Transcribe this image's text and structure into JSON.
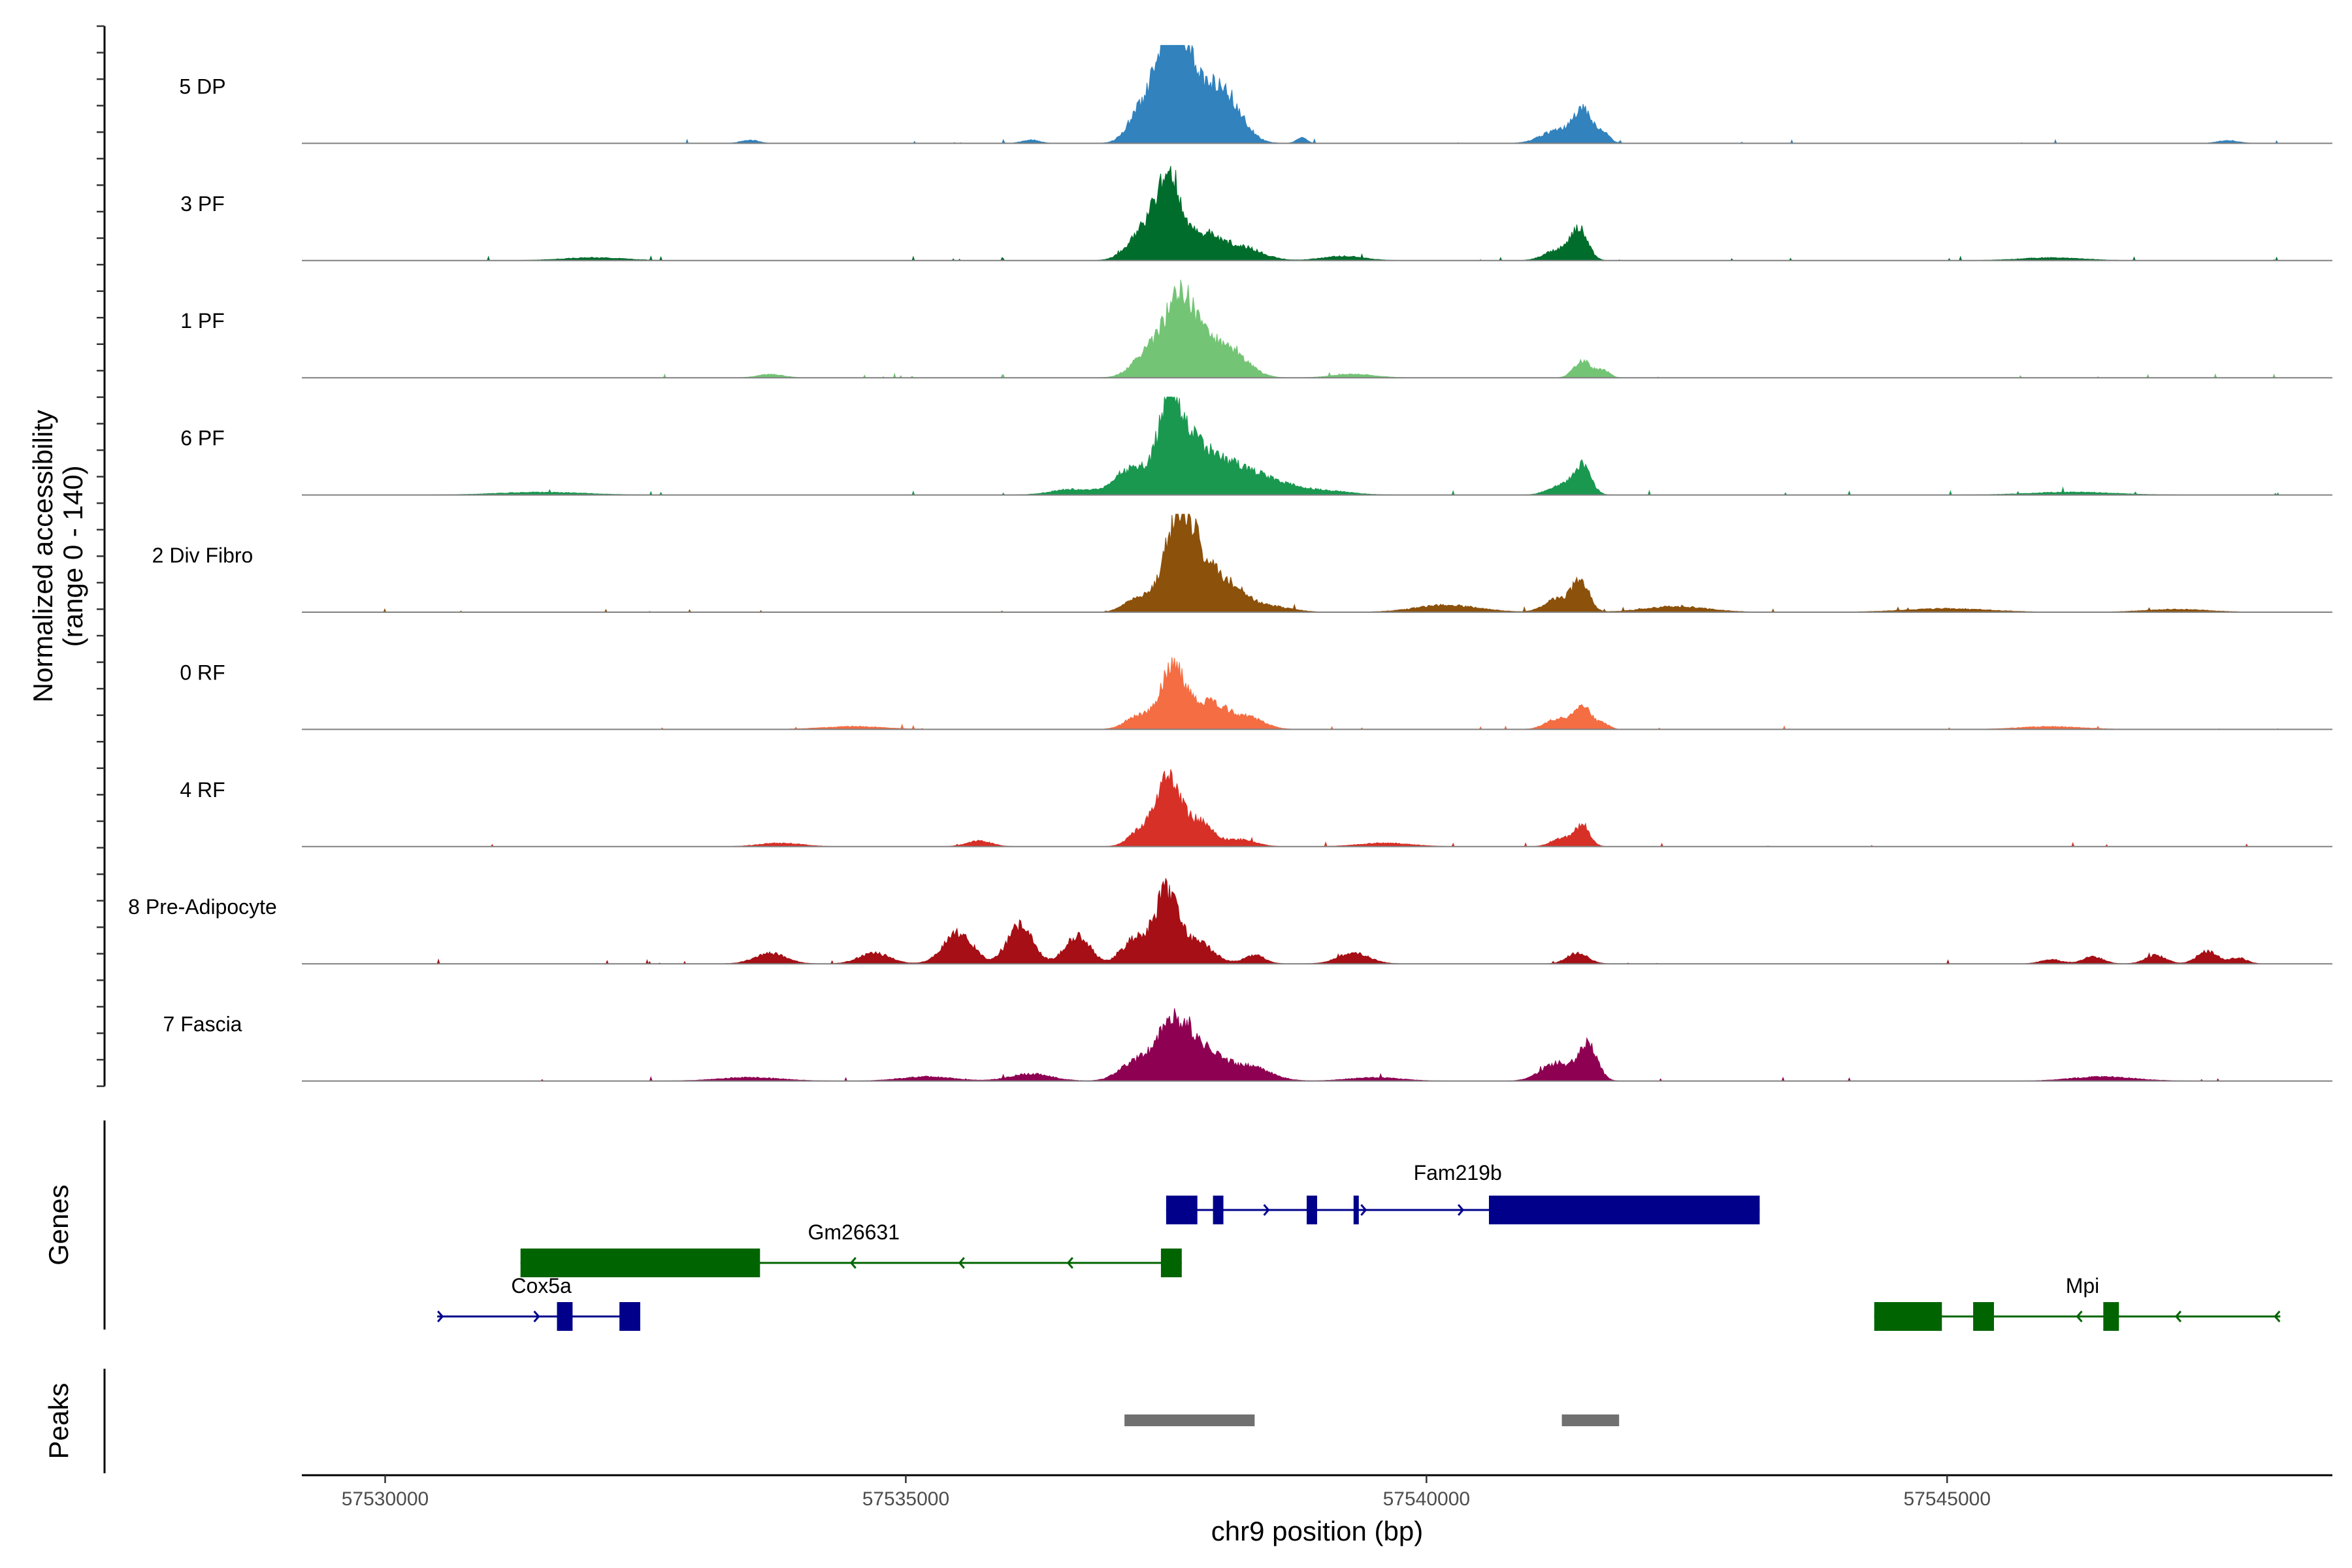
{
  "chart_data": {
    "type": "area",
    "title": "",
    "ylabel": "Normalized accessibility\n(range 0 - 140)",
    "ylim": [
      0,
      140
    ],
    "xlabel": "chr9 position (bp)",
    "xlim": [
      57529200,
      57548700
    ],
    "xticks": [
      57530000,
      57535000,
      57540000,
      57545000
    ],
    "xtick_labels": [
      "57530000",
      "57535000",
      "57540000",
      "57545000"
    ],
    "series": [
      {
        "name": "5 DP",
        "color": "#3182bd",
        "peaks": [
          [
            57537550,
            140,
            140
          ],
          [
            57537800,
            75,
            230
          ],
          [
            57538100,
            40,
            150
          ],
          [
            57537250,
            40,
            120
          ],
          [
            57541500,
            45,
            90
          ],
          [
            57541250,
            18,
            150
          ],
          [
            57541700,
            15,
            60
          ],
          [
            57538800,
            8,
            50
          ],
          [
            57533500,
            5,
            80
          ],
          [
            57536200,
            5,
            80
          ],
          [
            57547700,
            4,
            100
          ]
        ]
      },
      {
        "name": "3 PF",
        "color": "#006d2c",
        "peaks": [
          [
            57537530,
            115,
            110
          ],
          [
            57537300,
            45,
            150
          ],
          [
            57537850,
            35,
            150
          ],
          [
            57538200,
            20,
            200
          ],
          [
            57541470,
            45,
            80
          ],
          [
            57541250,
            15,
            120
          ],
          [
            57539200,
            6,
            200
          ],
          [
            57532000,
            4,
            300
          ],
          [
            57546000,
            4,
            300
          ]
        ]
      },
      {
        "name": "1 PF",
        "color": "#74c476",
        "peaks": [
          [
            57537630,
            100,
            130
          ],
          [
            57537350,
            40,
            150
          ],
          [
            57537900,
            50,
            180
          ],
          [
            57538200,
            20,
            150
          ],
          [
            57541500,
            25,
            80
          ],
          [
            57541700,
            10,
            60
          ],
          [
            57533700,
            5,
            120
          ],
          [
            57539300,
            5,
            200
          ]
        ]
      },
      {
        "name": "6 PF",
        "color": "#1a9850",
        "peaks": [
          [
            57537530,
            120,
            100
          ],
          [
            57537720,
            60,
            150
          ],
          [
            57537200,
            40,
            170
          ],
          [
            57538000,
            40,
            200
          ],
          [
            57538400,
            25,
            250
          ],
          [
            57541500,
            40,
            80
          ],
          [
            57541300,
            15,
            120
          ],
          [
            57536600,
            8,
            200
          ],
          [
            57539000,
            6,
            250
          ],
          [
            57531500,
            4,
            400
          ],
          [
            57546200,
            4,
            400
          ]
        ]
      },
      {
        "name": "2 Div Fibro",
        "color": "#8c510a",
        "peaks": [
          [
            57537620,
            125,
            140
          ],
          [
            57537850,
            55,
            180
          ],
          [
            57537220,
            20,
            120
          ],
          [
            57538150,
            25,
            150
          ],
          [
            57538500,
            8,
            200
          ],
          [
            57541480,
            45,
            80
          ],
          [
            57541250,
            18,
            120
          ],
          [
            57540200,
            10,
            300
          ],
          [
            57542400,
            8,
            300
          ],
          [
            57545000,
            5,
            400
          ],
          [
            57547200,
            4,
            300
          ]
        ]
      },
      {
        "name": "0 RF",
        "color": "#f46d43",
        "peaks": [
          [
            57537560,
            85,
            110
          ],
          [
            57537900,
            40,
            180
          ],
          [
            57537250,
            20,
            130
          ],
          [
            57538300,
            15,
            150
          ],
          [
            57541500,
            35,
            80
          ],
          [
            57541250,
            15,
            110
          ],
          [
            57541700,
            8,
            60
          ],
          [
            57534500,
            4,
            300
          ],
          [
            57546000,
            4,
            300
          ]
        ]
      },
      {
        "name": "4 RF",
        "color": "#d73027",
        "peaks": [
          [
            57537530,
            95,
            110
          ],
          [
            57537820,
            35,
            120
          ],
          [
            57537280,
            25,
            120
          ],
          [
            57538200,
            10,
            150
          ],
          [
            57541500,
            30,
            70
          ],
          [
            57541300,
            12,
            100
          ],
          [
            57535700,
            8,
            120
          ],
          [
            57533800,
            5,
            200
          ],
          [
            57539600,
            5,
            250
          ]
        ]
      },
      {
        "name": "8 Pre-Adipocyte",
        "color": "#a50f15",
        "peaks": [
          [
            57537500,
            100,
            110
          ],
          [
            57537800,
            30,
            150
          ],
          [
            57537200,
            35,
            120
          ],
          [
            57535500,
            45,
            140
          ],
          [
            57536100,
            55,
            120
          ],
          [
            57536650,
            40,
            120
          ],
          [
            57534700,
            15,
            150
          ],
          [
            57533700,
            15,
            150
          ],
          [
            57538350,
            12,
            100
          ],
          [
            57539300,
            15,
            150
          ],
          [
            57541450,
            15,
            100
          ],
          [
            57546400,
            10,
            100
          ],
          [
            57547000,
            12,
            100
          ],
          [
            57547500,
            18,
            100
          ],
          [
            57546000,
            6,
            100
          ],
          [
            57547800,
            8,
            80
          ]
        ]
      },
      {
        "name": "7 Fascia",
        "color": "#8e0152",
        "peaks": [
          [
            57537550,
            75,
            150
          ],
          [
            57537850,
            45,
            180
          ],
          [
            57537200,
            25,
            150
          ],
          [
            57538300,
            20,
            200
          ],
          [
            57541550,
            50,
            90
          ],
          [
            57541250,
            25,
            150
          ],
          [
            57536200,
            10,
            200
          ],
          [
            57535200,
            6,
            250
          ],
          [
            57546500,
            6,
            300
          ],
          [
            57533500,
            5,
            300
          ],
          [
            57539500,
            5,
            250
          ]
        ]
      }
    ],
    "genes": [
      {
        "name": "Fam219b",
        "strand": "+",
        "color": "#00008b",
        "row": 1,
        "start": 57537500,
        "end": 57543200,
        "exons": [
          [
            57537500,
            57537800
          ],
          [
            57537950,
            57538050
          ],
          [
            57538850,
            57538950
          ],
          [
            57539300,
            57539350
          ],
          [
            57540600,
            57543200
          ]
        ]
      },
      {
        "name": "Gm26631",
        "strand": "-",
        "color": "#006400",
        "row": 2,
        "start": 57531300,
        "end": 57537650,
        "exons": [
          [
            57531300,
            57533600
          ],
          [
            57537450,
            57537650
          ]
        ]
      },
      {
        "name": "Cox5a",
        "strand": "+",
        "color": "#00008b",
        "row": 3,
        "start": 57530500,
        "end": 57532450,
        "exons": [
          [
            57531650,
            57531800
          ],
          [
            57532250,
            57532450
          ]
        ]
      },
      {
        "name": "Mpi",
        "strand": "-",
        "color": "#006400",
        "row": 3,
        "start": 57544300,
        "end": 57548200,
        "exons": [
          [
            57544300,
            57544950
          ],
          [
            57545250,
            57545450
          ],
          [
            57546500,
            57546650
          ]
        ]
      }
    ],
    "gene_track_label": "Genes",
    "peaks": [
      [
        57537100,
        57538350
      ],
      [
        57541300,
        57541850
      ]
    ],
    "peak_color": "#707070",
    "peak_track_label": "Peaks"
  }
}
